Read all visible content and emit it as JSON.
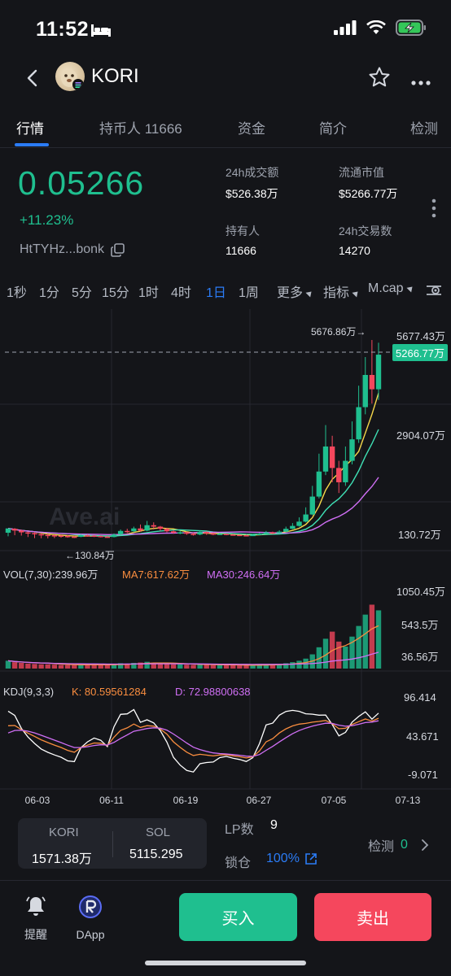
{
  "status_bar": {
    "time": "11:52"
  },
  "header": {
    "coin_name": "KORI"
  },
  "tabs": [
    {
      "label": "行情",
      "active": true
    },
    {
      "label": "持币人 11666",
      "active": false
    },
    {
      "label": "资金",
      "active": false
    },
    {
      "label": "简介",
      "active": false
    },
    {
      "label": "检测",
      "active": false
    }
  ],
  "summary": {
    "price": "0.05266",
    "change": "+11.23%",
    "address": "HtTYHz...bonk",
    "stats": [
      {
        "label": "24h成交额",
        "value": "$526.38万"
      },
      {
        "label": "流通市值",
        "value": "$5266.77万"
      },
      {
        "label": "持有人",
        "value": "11666"
      },
      {
        "label": "24h交易数",
        "value": "14270"
      }
    ]
  },
  "intervals": [
    {
      "label": "1秒",
      "active": false
    },
    {
      "label": "1分",
      "active": false
    },
    {
      "label": "5分",
      "active": false
    },
    {
      "label": "15分",
      "active": false
    },
    {
      "label": "1时",
      "active": false
    },
    {
      "label": "4时",
      "active": false
    },
    {
      "label": "1日",
      "active": true
    },
    {
      "label": "1周",
      "active": false
    },
    {
      "label": "更多",
      "active": false
    },
    {
      "label": "指标",
      "active": false
    },
    {
      "label": "M.cap",
      "active": false
    }
  ],
  "colors": {
    "up": "#1fbf8f",
    "down": "#f5475d",
    "accent": "#2b7cf6",
    "k": "#f98d3f",
    "d": "#d06ff5"
  },
  "chart_data": {
    "type": "candlestick",
    "watermark": "Ave.ai",
    "x_ticks": [
      "06-03",
      "06-11",
      "06-19",
      "06-27",
      "07-05",
      "07-13"
    ],
    "price_axis": [
      "5677.43万",
      "2904.07万",
      "130.72万"
    ],
    "current_value": "5266.77万",
    "high_label": "5676.86万→",
    "low_label": "←130.84万",
    "ylim": [
      130.72,
      5677.43
    ],
    "candles": [
      [
        290,
        410,
        190,
        400
      ],
      [
        400,
        350,
        220,
        420
      ],
      [
        350,
        300,
        210,
        380
      ],
      [
        300,
        280,
        170,
        320
      ],
      [
        280,
        250,
        140,
        310
      ],
      [
        250,
        230,
        135,
        280
      ],
      [
        230,
        220,
        131,
        260
      ],
      [
        220,
        210,
        140,
        240
      ],
      [
        210,
        200,
        150,
        230
      ],
      [
        200,
        180,
        150,
        220
      ],
      [
        180,
        175,
        140,
        200
      ],
      [
        175,
        220,
        165,
        250
      ],
      [
        220,
        210,
        180,
        240
      ],
      [
        210,
        200,
        170,
        230
      ],
      [
        200,
        180,
        160,
        210
      ],
      [
        180,
        170,
        150,
        200
      ],
      [
        170,
        240,
        160,
        270
      ],
      [
        240,
        340,
        230,
        380
      ],
      [
        340,
        330,
        280,
        400
      ],
      [
        330,
        410,
        300,
        460
      ],
      [
        410,
        350,
        320,
        520
      ],
      [
        350,
        500,
        330,
        620
      ],
      [
        500,
        460,
        380,
        580
      ],
      [
        460,
        400,
        350,
        480
      ],
      [
        400,
        330,
        300,
        430
      ],
      [
        330,
        290,
        260,
        360
      ],
      [
        290,
        300,
        250,
        340
      ],
      [
        300,
        260,
        230,
        320
      ],
      [
        260,
        240,
        210,
        290
      ],
      [
        240,
        310,
        220,
        350
      ],
      [
        310,
        270,
        230,
        330
      ],
      [
        270,
        250,
        220,
        290
      ],
      [
        250,
        260,
        230,
        280
      ],
      [
        260,
        240,
        220,
        270
      ],
      [
        240,
        230,
        210,
        260
      ],
      [
        230,
        220,
        200,
        240
      ],
      [
        220,
        215,
        200,
        240
      ],
      [
        215,
        230,
        205,
        250
      ],
      [
        230,
        260,
        220,
        290
      ],
      [
        260,
        300,
        250,
        340
      ],
      [
        300,
        280,
        250,
        320
      ],
      [
        280,
        320,
        270,
        360
      ],
      [
        320,
        400,
        300,
        460
      ],
      [
        400,
        480,
        390,
        560
      ],
      [
        480,
        600,
        460,
        720
      ],
      [
        600,
        800,
        580,
        1000
      ],
      [
        800,
        1300,
        780,
        1600
      ],
      [
        1300,
        2000,
        1250,
        2500
      ],
      [
        2000,
        2700,
        1900,
        3300
      ],
      [
        2700,
        2100,
        1700,
        3000
      ],
      [
        2100,
        1700,
        1400,
        2300
      ],
      [
        1700,
        2300,
        1600,
        2700
      ],
      [
        2300,
        2900,
        2200,
        3400
      ],
      [
        2900,
        3800,
        2800,
        4400
      ],
      [
        3800,
        4700,
        3600,
        5200
      ],
      [
        4700,
        4300,
        3900,
        5676.86
      ],
      [
        4300,
        5266.77,
        4000,
        5600
      ]
    ],
    "volume": {
      "label": "VOL(7,30):239.96万",
      "ma7_label": "MA7:617.62万",
      "ma30_label": "MA30:246.64万",
      "axis": [
        "1050.45万",
        "543.5万",
        "36.56万"
      ],
      "ylim": [
        0,
        1100
      ],
      "values": [
        110,
        90,
        80,
        70,
        65,
        60,
        60,
        55,
        50,
        50,
        48,
        55,
        60,
        55,
        50,
        48,
        60,
        75,
        70,
        80,
        85,
        95,
        80,
        70,
        65,
        60,
        58,
        55,
        52,
        60,
        55,
        50,
        50,
        48,
        46,
        45,
        45,
        48,
        55,
        60,
        58,
        62,
        75,
        90,
        110,
        140,
        200,
        300,
        420,
        520,
        380,
        310,
        450,
        600,
        760,
        900,
        820
      ]
    },
    "kdj": {
      "label": "KDJ(9,3,3)",
      "k_label": "K: 80.59561284",
      "d_label": "D: 72.98800638",
      "axis": [
        "96.414",
        "43.671",
        "-9.071"
      ],
      "ylim": [
        -20,
        115
      ]
    }
  },
  "bottom_card": {
    "left_label": "KORI",
    "left_value": "1571.38万",
    "right_label": "SOL",
    "right_value": "5115.295"
  },
  "lp": {
    "label": "LP数",
    "value": "9"
  },
  "lock": {
    "label": "锁仓",
    "value": "100%"
  },
  "detect": {
    "label": "检测",
    "value": "0"
  },
  "nav": {
    "remind": "提醒",
    "dapp": "DApp"
  },
  "actions": {
    "buy": "买入",
    "sell": "卖出"
  }
}
